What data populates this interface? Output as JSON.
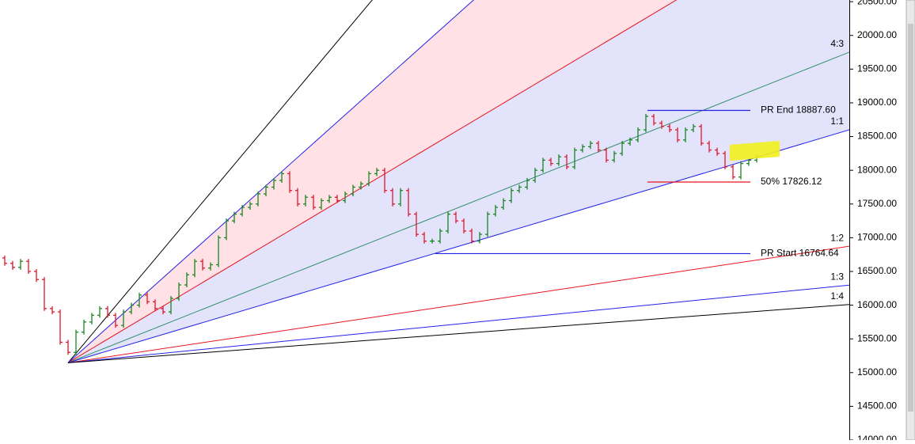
{
  "chart_data": {
    "type": "ohlc",
    "up_color": "#17871f",
    "down_color": "#e3162b",
    "xlim": [
      -0.6,
      106.7
    ],
    "ylim": [
      14000,
      20525
    ],
    "yticks": [
      {
        "value": 14000,
        "label": "14000.00"
      },
      {
        "value": 14500,
        "label": "14500.00"
      },
      {
        "value": 15000,
        "label": "15000.00"
      },
      {
        "value": 15500,
        "label": "15500.00"
      },
      {
        "value": 16000,
        "label": "16000.00"
      },
      {
        "value": 16500,
        "label": "16500.00"
      },
      {
        "value": 17000,
        "label": "17000.00"
      },
      {
        "value": 17500,
        "label": "17500.00"
      },
      {
        "value": 18000,
        "label": "18000.00"
      },
      {
        "value": 18500,
        "label": "18500.00"
      },
      {
        "value": 19000,
        "label": "19000.00"
      },
      {
        "value": 19500,
        "label": "19500.00"
      },
      {
        "value": 20000,
        "label": "20000.00"
      },
      {
        "value": 20500,
        "label": "20500.00"
      }
    ],
    "open": [
      16700,
      16620,
      16560,
      16650,
      16500,
      16380,
      15950,
      15900,
      15450,
      15300,
      15600,
      15750,
      15850,
      15950,
      15850,
      15700,
      15900,
      16000,
      16150,
      16050,
      15950,
      15900,
      16100,
      16300,
      16450,
      16650,
      16550,
      16600,
      17000,
      17250,
      17350,
      17450,
      17500,
      17650,
      17750,
      17850,
      17950,
      17700,
      17500,
      17600,
      17450,
      17550,
      17600,
      17550,
      17650,
      17750,
      17800,
      17950,
      18000,
      17700,
      17500,
      17700,
      17350,
      17050,
      16950,
      16950,
      17100,
      17350,
      17250,
      17100,
      16950,
      17050,
      17350,
      17450,
      17550,
      17700,
      17750,
      17850,
      18000,
      18150,
      18100,
      18200,
      18050,
      18300,
      18350,
      18400,
      18300,
      18150,
      18250,
      18400,
      18450,
      18600,
      18800,
      18700,
      18650,
      18600,
      18450,
      18600,
      18650,
      18400,
      18300,
      18250,
      18050,
      17900,
      18100,
      18150
    ],
    "close": [
      16620,
      16560,
      16650,
      16500,
      16380,
      15950,
      15900,
      15450,
      15300,
      15600,
      15750,
      15850,
      15950,
      15850,
      15700,
      15900,
      16000,
      16150,
      16050,
      15950,
      15900,
      16100,
      16300,
      16450,
      16650,
      16550,
      16600,
      17000,
      17250,
      17350,
      17450,
      17500,
      17650,
      17750,
      17850,
      17950,
      17700,
      17500,
      17600,
      17450,
      17550,
      17600,
      17550,
      17650,
      17750,
      17800,
      17950,
      18000,
      17700,
      17500,
      17700,
      17350,
      17050,
      16950,
      16950,
      17100,
      17350,
      17250,
      17100,
      16950,
      17050,
      17350,
      17450,
      17550,
      17700,
      17750,
      17850,
      18000,
      18150,
      18100,
      18200,
      18050,
      18300,
      18350,
      18400,
      18300,
      18150,
      18250,
      18400,
      18450,
      18600,
      18800,
      18700,
      18650,
      18600,
      18450,
      18600,
      18650,
      18400,
      18300,
      18250,
      18050,
      17900,
      18100,
      18150,
      18200
    ],
    "fan": {
      "origin_x": 8,
      "origin_y": 15146,
      "unit": 35,
      "lines": [
        {
          "rise": 4,
          "run": 1,
          "color": "#000000"
        },
        {
          "rise": 3,
          "run": 1,
          "color": "#2323e8"
        },
        {
          "rise": 2,
          "run": 1,
          "color": "#e8141e"
        },
        {
          "rise": 4,
          "run": 3,
          "color": "#2f8f6a",
          "label": "4:3"
        },
        {
          "rise": 1,
          "run": 1,
          "color": "#2323e8",
          "label": "1:1"
        },
        {
          "rise": 1,
          "run": 2,
          "color": "#e8141e",
          "label": "1:2"
        },
        {
          "rise": 1,
          "run": 3,
          "color": "#2323e8",
          "label": "1:3"
        },
        {
          "rise": 1,
          "run": 4,
          "color": "#000000",
          "label": "1:4"
        }
      ],
      "fills": [
        {
          "from": 1,
          "to": 2,
          "color": "#ffe1e6"
        },
        {
          "from": 2,
          "to": 4,
          "color": "#e3e3fb"
        }
      ]
    },
    "levels": [
      {
        "label": "PR End 18887.60",
        "value": 18887.6,
        "start": 81.2,
        "end": 94.2,
        "color": "#2323e8"
      },
      {
        "label": "50% 17826.12",
        "value": 17826.12,
        "start": 81.2,
        "end": 94.2,
        "color": "#e8141e"
      },
      {
        "label": "PR Start 16764.64",
        "value": 16764.64,
        "start": 54.4,
        "end": 94.2,
        "color": "#2323e8"
      }
    ]
  }
}
